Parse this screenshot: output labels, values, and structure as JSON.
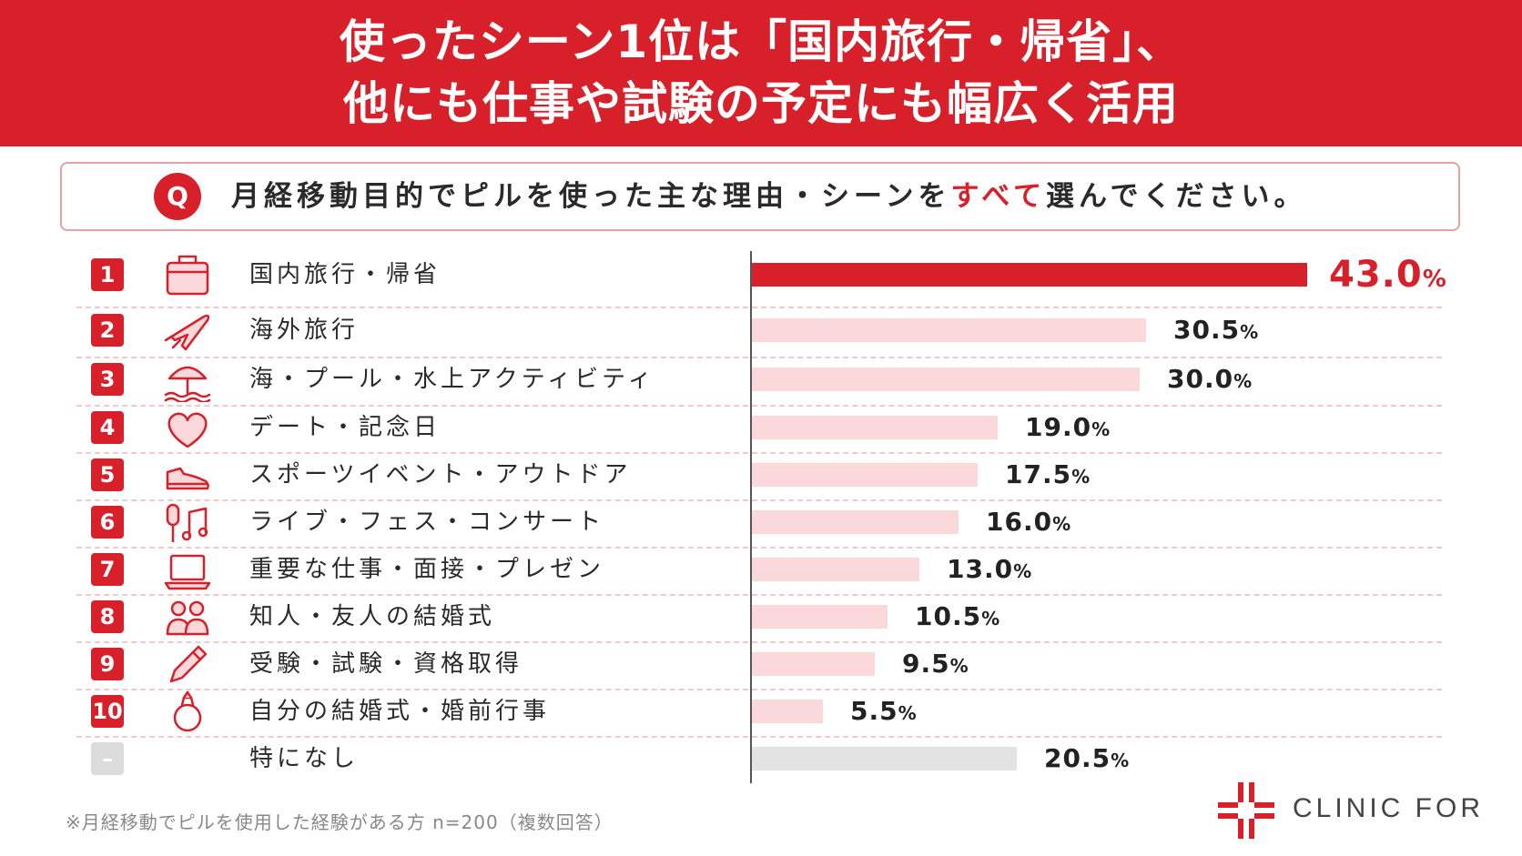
{
  "title": {
    "line1": "使ったシーン1位は「国内旅行・帰省」、",
    "line2": "他にも仕事や試験の予定にも幅広く活用"
  },
  "question": {
    "icon_label": "Q",
    "text_before": "月経移動目的でピルを使った主な理由・シーンを",
    "text_emphasis": "すべて",
    "text_after": "選んでください。"
  },
  "chart_data": {
    "type": "bar",
    "orientation": "horizontal",
    "unit": "%",
    "categories": [
      "国内旅行・帰省",
      "海外旅行",
      "海・プール・水上アクティビティ",
      "デート・記念日",
      "スポーツイベント・アウトドア",
      "ライブ・フェス・コンサート",
      "重要な仕事・面接・プレゼン",
      "知人・友人の結婚式",
      "受験・試験・資格取得",
      "自分の結婚式・婚前行事",
      "特になし"
    ],
    "values": [
      43.0,
      30.5,
      30.0,
      19.0,
      17.5,
      16.0,
      13.0,
      10.5,
      9.5,
      5.5,
      20.5
    ],
    "value_labels": [
      "43.0",
      "30.5",
      "30.0",
      "19.0",
      "17.5",
      "16.0",
      "13.0",
      "10.5",
      "9.5",
      "5.5",
      "20.5"
    ],
    "ranks": [
      "1",
      "2",
      "3",
      "4",
      "5",
      "6",
      "7",
      "8",
      "9",
      "10",
      "–"
    ],
    "icons": [
      "suitcase-icon",
      "airplane-icon",
      "beach-umbrella-icon",
      "heart-icon",
      "sneaker-icon",
      "mic-music-icon",
      "laptop-icon",
      "people-icon",
      "pencil-icon",
      "ring-icon",
      ""
    ],
    "ylabel": "",
    "xlabel": "",
    "xlim": [
      0,
      43.0
    ],
    "grid": false
  },
  "footnote": "※月経移動でピルを使用した経験がある方 n=200（複数回答）",
  "brand": {
    "name": "CLINIC FOR"
  },
  "colors": {
    "accent": "#d8202a",
    "bar_highlight": "#d8202a",
    "bar_default": "#fbd9da",
    "bar_none": "#e3e3e3",
    "divider": "#f1c9cb"
  }
}
